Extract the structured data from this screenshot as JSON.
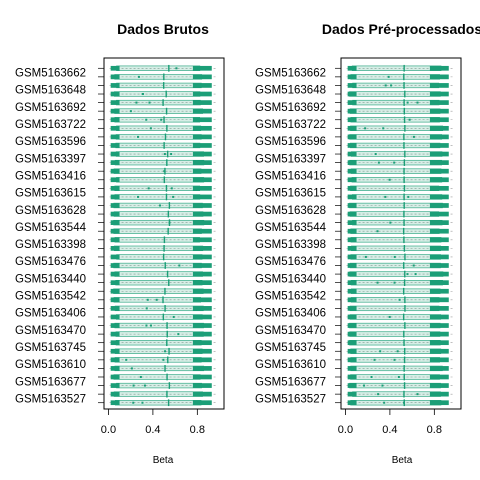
{
  "chart_data": [
    {
      "type": "boxplot",
      "title": "Dados Brutos",
      "xlabel": "Beta",
      "xlim": [
        -0.04,
        1.04
      ],
      "xticks": [
        "0.0",
        "0.4",
        "0.8"
      ],
      "xtick_values": [
        0.0,
        0.4,
        0.8
      ],
      "orientation": "horizontal",
      "labeled_samples": [
        "GSM5163662",
        "GSM5163648",
        "GSM5163692",
        "GSM5163722",
        "GSM5163596",
        "GSM5163397",
        "GSM5163416",
        "GSM5163615",
        "GSM5163628",
        "GSM5163544",
        "GSM5163398",
        "GSM5163476",
        "GSM5163440",
        "GSM5163542",
        "GSM5163406",
        "GSM5163470",
        "GSM5163745",
        "GSM5163610",
        "GSM5163677",
        "GSM5163527"
      ],
      "n_boxes": 40,
      "median_approx": 0.52,
      "lower_quartile_approx": 0.06,
      "upper_quartile_approx": 0.84,
      "box_color": "#1B9E77"
    },
    {
      "type": "boxplot",
      "title": "Dados Pré-processados",
      "xlabel": "Beta",
      "xlim": [
        -0.04,
        1.04
      ],
      "xticks": [
        "0.0",
        "0.4",
        "0.8"
      ],
      "xtick_values": [
        0.0,
        0.4,
        0.8
      ],
      "orientation": "horizontal",
      "labeled_samples": [
        "GSM5163662",
        "GSM5163648",
        "GSM5163692",
        "GSM5163722",
        "GSM5163596",
        "GSM5163397",
        "GSM5163416",
        "GSM5163615",
        "GSM5163628",
        "GSM5163544",
        "GSM5163398",
        "GSM5163476",
        "GSM5163440",
        "GSM5163542",
        "GSM5163406",
        "GSM5163470",
        "GSM5163745",
        "GSM5163610",
        "GSM5163677",
        "GSM5163527"
      ],
      "n_boxes": 40,
      "median_approx": 0.53,
      "lower_quartile_approx": 0.05,
      "upper_quartile_approx": 0.86,
      "box_color": "#1B9E77"
    }
  ]
}
